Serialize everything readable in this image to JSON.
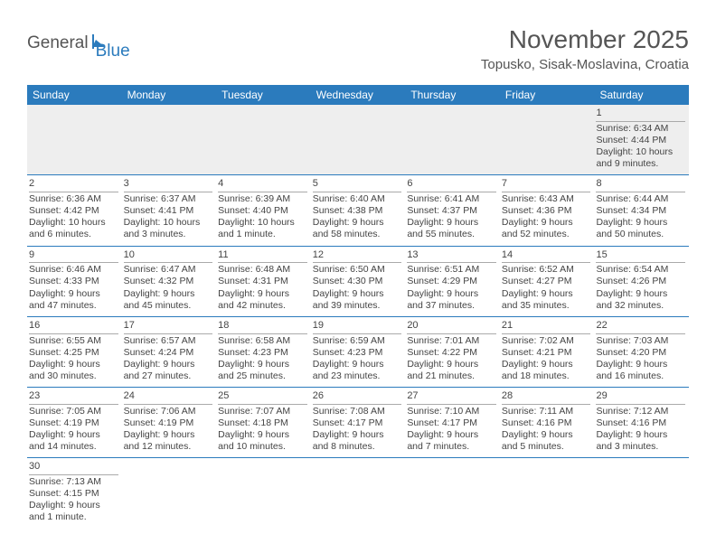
{
  "logo": {
    "general": "General",
    "blue": "Blue"
  },
  "title": "November 2025",
  "location": "Topusko, Sisak-Moslavina, Croatia",
  "colors": {
    "header_bg": "#2b7bbd",
    "header_text": "#ffffff",
    "text": "#444444",
    "blank_bg": "#eeeeee",
    "row_border": "#2b7bbd",
    "daynum_border": "#aaaaaa"
  },
  "dow": [
    "Sunday",
    "Monday",
    "Tuesday",
    "Wednesday",
    "Thursday",
    "Friday",
    "Saturday"
  ],
  "weeks": [
    [
      null,
      null,
      null,
      null,
      null,
      null,
      {
        "n": "1",
        "sunrise": "6:34 AM",
        "sunset": "4:44 PM",
        "daylight": "10 hours and 9 minutes."
      }
    ],
    [
      {
        "n": "2",
        "sunrise": "6:36 AM",
        "sunset": "4:42 PM",
        "daylight": "10 hours and 6 minutes."
      },
      {
        "n": "3",
        "sunrise": "6:37 AM",
        "sunset": "4:41 PM",
        "daylight": "10 hours and 3 minutes."
      },
      {
        "n": "4",
        "sunrise": "6:39 AM",
        "sunset": "4:40 PM",
        "daylight": "10 hours and 1 minute."
      },
      {
        "n": "5",
        "sunrise": "6:40 AM",
        "sunset": "4:38 PM",
        "daylight": "9 hours and 58 minutes."
      },
      {
        "n": "6",
        "sunrise": "6:41 AM",
        "sunset": "4:37 PM",
        "daylight": "9 hours and 55 minutes."
      },
      {
        "n": "7",
        "sunrise": "6:43 AM",
        "sunset": "4:36 PM",
        "daylight": "9 hours and 52 minutes."
      },
      {
        "n": "8",
        "sunrise": "6:44 AM",
        "sunset": "4:34 PM",
        "daylight": "9 hours and 50 minutes."
      }
    ],
    [
      {
        "n": "9",
        "sunrise": "6:46 AM",
        "sunset": "4:33 PM",
        "daylight": "9 hours and 47 minutes."
      },
      {
        "n": "10",
        "sunrise": "6:47 AM",
        "sunset": "4:32 PM",
        "daylight": "9 hours and 45 minutes."
      },
      {
        "n": "11",
        "sunrise": "6:48 AM",
        "sunset": "4:31 PM",
        "daylight": "9 hours and 42 minutes."
      },
      {
        "n": "12",
        "sunrise": "6:50 AM",
        "sunset": "4:30 PM",
        "daylight": "9 hours and 39 minutes."
      },
      {
        "n": "13",
        "sunrise": "6:51 AM",
        "sunset": "4:29 PM",
        "daylight": "9 hours and 37 minutes."
      },
      {
        "n": "14",
        "sunrise": "6:52 AM",
        "sunset": "4:27 PM",
        "daylight": "9 hours and 35 minutes."
      },
      {
        "n": "15",
        "sunrise": "6:54 AM",
        "sunset": "4:26 PM",
        "daylight": "9 hours and 32 minutes."
      }
    ],
    [
      {
        "n": "16",
        "sunrise": "6:55 AM",
        "sunset": "4:25 PM",
        "daylight": "9 hours and 30 minutes."
      },
      {
        "n": "17",
        "sunrise": "6:57 AM",
        "sunset": "4:24 PM",
        "daylight": "9 hours and 27 minutes."
      },
      {
        "n": "18",
        "sunrise": "6:58 AM",
        "sunset": "4:23 PM",
        "daylight": "9 hours and 25 minutes."
      },
      {
        "n": "19",
        "sunrise": "6:59 AM",
        "sunset": "4:23 PM",
        "daylight": "9 hours and 23 minutes."
      },
      {
        "n": "20",
        "sunrise": "7:01 AM",
        "sunset": "4:22 PM",
        "daylight": "9 hours and 21 minutes."
      },
      {
        "n": "21",
        "sunrise": "7:02 AM",
        "sunset": "4:21 PM",
        "daylight": "9 hours and 18 minutes."
      },
      {
        "n": "22",
        "sunrise": "7:03 AM",
        "sunset": "4:20 PM",
        "daylight": "9 hours and 16 minutes."
      }
    ],
    [
      {
        "n": "23",
        "sunrise": "7:05 AM",
        "sunset": "4:19 PM",
        "daylight": "9 hours and 14 minutes."
      },
      {
        "n": "24",
        "sunrise": "7:06 AM",
        "sunset": "4:19 PM",
        "daylight": "9 hours and 12 minutes."
      },
      {
        "n": "25",
        "sunrise": "7:07 AM",
        "sunset": "4:18 PM",
        "daylight": "9 hours and 10 minutes."
      },
      {
        "n": "26",
        "sunrise": "7:08 AM",
        "sunset": "4:17 PM",
        "daylight": "9 hours and 8 minutes."
      },
      {
        "n": "27",
        "sunrise": "7:10 AM",
        "sunset": "4:17 PM",
        "daylight": "9 hours and 7 minutes."
      },
      {
        "n": "28",
        "sunrise": "7:11 AM",
        "sunset": "4:16 PM",
        "daylight": "9 hours and 5 minutes."
      },
      {
        "n": "29",
        "sunrise": "7:12 AM",
        "sunset": "4:16 PM",
        "daylight": "9 hours and 3 minutes."
      }
    ],
    [
      {
        "n": "30",
        "sunrise": "7:13 AM",
        "sunset": "4:15 PM",
        "daylight": "9 hours and 1 minute."
      },
      null,
      null,
      null,
      null,
      null,
      null
    ]
  ],
  "labels": {
    "sunrise": "Sunrise:",
    "sunset": "Sunset:",
    "daylight": "Daylight:"
  }
}
